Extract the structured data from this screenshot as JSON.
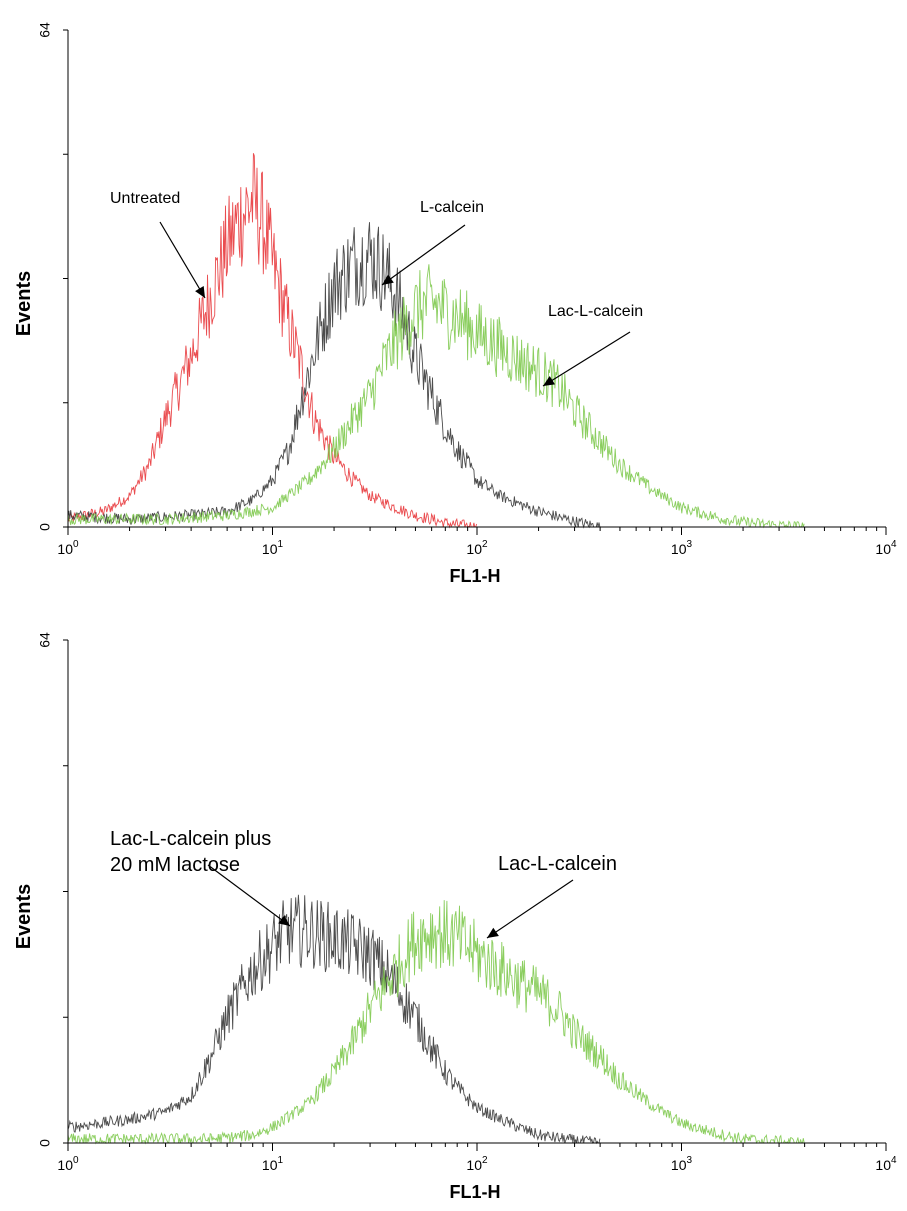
{
  "chart_data": [
    {
      "type": "line",
      "xlabel": "FL1-H",
      "ylabel": "Events",
      "xscale": "log",
      "xlim": [
        1,
        10000
      ],
      "ylim": [
        0,
        64
      ],
      "x_tick_labels": [
        {
          "base": "10",
          "exp": "0"
        },
        {
          "base": "10",
          "exp": "1"
        },
        {
          "base": "10",
          "exp": "2"
        },
        {
          "base": "10",
          "exp": "3"
        },
        {
          "base": "10",
          "exp": "4"
        }
      ],
      "y_tick_labels": [
        "0",
        "64"
      ],
      "series": [
        {
          "name": "Untreated",
          "color": "#e8383c",
          "x": [
            1,
            1.5,
            2,
            2.5,
            3,
            4,
            5,
            6,
            7,
            8,
            9,
            10,
            11,
            12,
            14,
            16,
            20,
            25,
            30,
            40,
            50,
            60,
            70,
            80,
            100
          ],
          "y": [
            1,
            2,
            4,
            8,
            14,
            22,
            30,
            36,
            40,
            42,
            39,
            34,
            30,
            26,
            20,
            14,
            9,
            6,
            4,
            2.5,
            1.5,
            1,
            0.5,
            0.3,
            0
          ]
        },
        {
          "name": "L-calcein",
          "color": "#3a3a3a",
          "x": [
            1,
            2,
            4,
            6,
            8,
            10,
            12,
            14,
            17,
            20,
            25,
            30,
            35,
            40,
            45,
            50,
            60,
            70,
            80,
            90,
            100,
            130,
            160,
            200,
            300,
            400
          ],
          "y": [
            1.5,
            1,
            1.5,
            2,
            3.5,
            6,
            10,
            17,
            25,
            31,
            34,
            35,
            33,
            30,
            26,
            22,
            17,
            13,
            10,
            8,
            6,
            4,
            3,
            2,
            0.7,
            0
          ]
        },
        {
          "name": "Lac-L-calcein",
          "color": "#7ec94e",
          "x": [
            1,
            3,
            6,
            10,
            15,
            20,
            25,
            30,
            35,
            40,
            50,
            60,
            80,
            100,
            150,
            200,
            250,
            300,
            400,
            500,
            700,
            1000,
            1500,
            2000,
            3000,
            4000
          ],
          "y": [
            1,
            1,
            1.5,
            2.5,
            6,
            10,
            14,
            17,
            21,
            24,
            28,
            29,
            27,
            25,
            22,
            20,
            18,
            15,
            11,
            8,
            5,
            2.5,
            1.2,
            0.6,
            0.2,
            0
          ]
        }
      ],
      "annotations": [
        {
          "text": "Untreated",
          "color": "#000000"
        },
        {
          "text": "L-calcein",
          "color": "#000000"
        },
        {
          "text": "Lac-L-calcein",
          "color": "#000000"
        }
      ]
    },
    {
      "type": "line",
      "xlabel": "FL1-H",
      "ylabel": "Events",
      "xscale": "log",
      "xlim": [
        1,
        10000
      ],
      "ylim": [
        0,
        64
      ],
      "x_tick_labels": [
        {
          "base": "10",
          "exp": "0"
        },
        {
          "base": "10",
          "exp": "1"
        },
        {
          "base": "10",
          "exp": "2"
        },
        {
          "base": "10",
          "exp": "3"
        },
        {
          "base": "10",
          "exp": "4"
        }
      ],
      "y_tick_labels": [
        "0",
        "64"
      ],
      "series": [
        {
          "name": "Lac-L-calcein plus 20 mM lactose",
          "color": "#3a3a3a",
          "x": [
            1,
            2,
            3,
            4,
            5,
            6,
            8,
            10,
            12,
            15,
            20,
            25,
            30,
            35,
            40,
            50,
            60,
            70,
            80,
            100,
            130,
            160,
            200,
            300,
            400
          ],
          "y": [
            2,
            3,
            4,
            6,
            11,
            16,
            22,
            25,
            27,
            27,
            26,
            25,
            24,
            22,
            20,
            16,
            12,
            9,
            7,
            4.5,
            3,
            2,
            1,
            0.3,
            0
          ]
        },
        {
          "name": "Lac-L-calcein",
          "color": "#7ec94e",
          "x": [
            1,
            3,
            5,
            8,
            10,
            15,
            20,
            25,
            30,
            40,
            50,
            60,
            80,
            100,
            150,
            200,
            250,
            300,
            400,
            500,
            700,
            1000,
            1500,
            2000,
            3000,
            4000
          ],
          "y": [
            0.5,
            0.5,
            0.5,
            1,
            2,
            5,
            9,
            13,
            17,
            22,
            26,
            27,
            26,
            24,
            21,
            19,
            17,
            14,
            11,
            8,
            5,
            2.5,
            1.2,
            0.5,
            0.2,
            0
          ]
        }
      ],
      "annotations": [
        {
          "text": "Lac-L-calcein plus",
          "text2": "20 mM lactose",
          "color": "#000000"
        },
        {
          "text": "Lac-L-calcein",
          "color": "#000000"
        }
      ]
    }
  ]
}
